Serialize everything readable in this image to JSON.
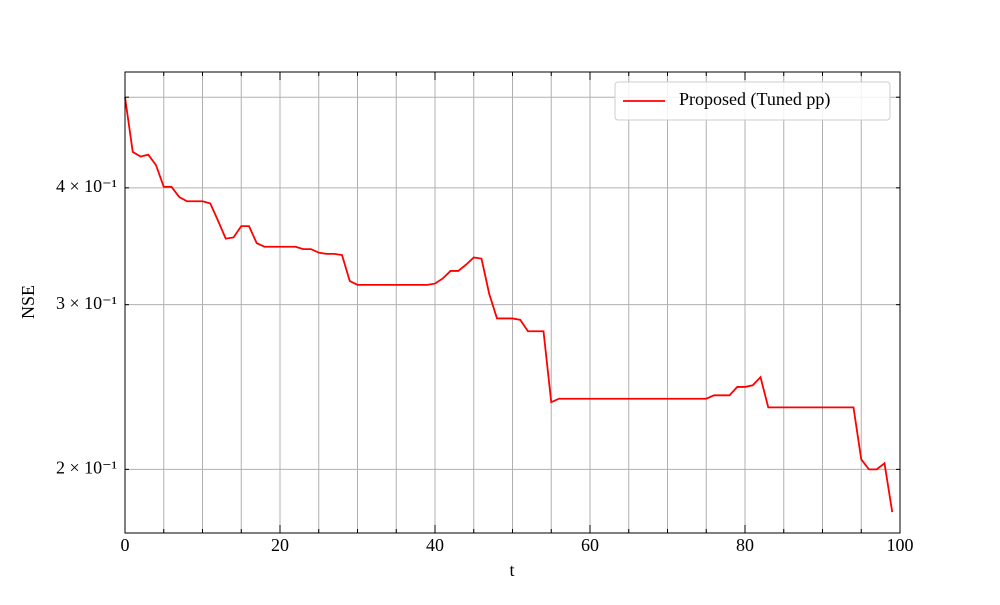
{
  "chart_data": {
    "type": "line",
    "x_label": "t",
    "y_label": "NSE",
    "x": [
      0,
      1,
      2,
      3,
      4,
      5,
      6,
      7,
      8,
      9,
      10,
      11,
      12,
      13,
      14,
      15,
      16,
      17,
      18,
      19,
      20,
      21,
      22,
      23,
      24,
      25,
      26,
      27,
      28,
      29,
      30,
      31,
      32,
      33,
      34,
      35,
      36,
      37,
      38,
      39,
      40,
      41,
      42,
      43,
      44,
      45,
      46,
      47,
      48,
      49,
      50,
      51,
      52,
      53,
      54,
      55,
      56,
      57,
      58,
      59,
      60,
      61,
      62,
      63,
      64,
      65,
      66,
      67,
      68,
      69,
      70,
      71,
      72,
      73,
      74,
      75,
      76,
      77,
      78,
      79,
      80,
      81,
      82,
      83,
      84,
      85,
      86,
      87,
      88,
      89,
      90,
      91,
      92,
      93,
      94,
      95,
      96,
      97,
      98,
      99
    ],
    "series": [
      {
        "name": "Proposed (Tuned pp)",
        "color": "#ff0000",
        "values": [
          0.5,
          0.437,
          0.432,
          0.434,
          0.423,
          0.401,
          0.401,
          0.391,
          0.387,
          0.387,
          0.387,
          0.385,
          0.369,
          0.353,
          0.354,
          0.364,
          0.364,
          0.349,
          0.346,
          0.346,
          0.346,
          0.346,
          0.346,
          0.344,
          0.344,
          0.341,
          0.34,
          0.34,
          0.339,
          0.318,
          0.315,
          0.315,
          0.315,
          0.315,
          0.315,
          0.315,
          0.315,
          0.315,
          0.315,
          0.315,
          0.316,
          0.32,
          0.326,
          0.326,
          0.331,
          0.337,
          0.336,
          0.308,
          0.29,
          0.29,
          0.29,
          0.289,
          0.281,
          0.281,
          0.281,
          0.236,
          0.238,
          0.238,
          0.238,
          0.238,
          0.238,
          0.238,
          0.238,
          0.238,
          0.238,
          0.238,
          0.238,
          0.238,
          0.238,
          0.238,
          0.238,
          0.238,
          0.238,
          0.238,
          0.238,
          0.238,
          0.24,
          0.24,
          0.24,
          0.245,
          0.245,
          0.246,
          0.251,
          0.233,
          0.233,
          0.233,
          0.233,
          0.233,
          0.233,
          0.233,
          0.233,
          0.233,
          0.233,
          0.233,
          0.233,
          0.205,
          0.2,
          0.2,
          0.203,
          0.18
        ]
      }
    ],
    "xlim": [
      0,
      100
    ],
    "xticks": [
      0,
      20,
      40,
      60,
      80,
      100
    ],
    "x_minor_ticks": [
      5,
      10,
      15,
      25,
      30,
      35,
      45,
      50,
      55,
      65,
      70,
      75,
      85,
      90,
      95
    ],
    "ylim": [
      0.171,
      0.532
    ],
    "y_log": true,
    "yticks": [
      {
        "value": 0.2,
        "label": "2 × 10⁻¹"
      },
      {
        "value": 0.3,
        "label": "3 × 10⁻¹"
      },
      {
        "value": 0.4,
        "label": "4 × 10⁻¹"
      }
    ],
    "y_minor_ticks": [
      0.5
    ],
    "grid": true,
    "legend": "upper right"
  }
}
